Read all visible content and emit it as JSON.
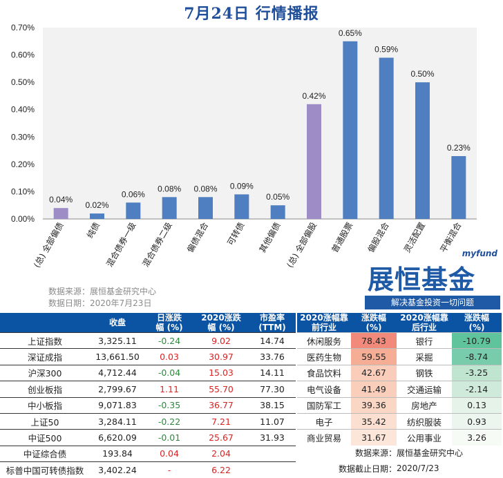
{
  "title": "7月24日  行情播报",
  "chart_data": {
    "type": "bar",
    "categories": [
      "(总) 全部偏债",
      "纯债",
      "混合债券一级",
      "混合债券二级",
      "偏债混合",
      "可转债",
      "其他偏债",
      "(总) 全部偏股",
      "普通股票",
      "偏股混合",
      "灵活配置",
      "平衡混合"
    ],
    "values": [
      0.04,
      0.02,
      0.06,
      0.08,
      0.08,
      0.09,
      0.05,
      0.42,
      0.65,
      0.59,
      0.5,
      0.23
    ],
    "value_labels": [
      "0.04%",
      "0.02%",
      "0.06%",
      "0.08%",
      "0.08%",
      "0.09%",
      "0.05%",
      "0.42%",
      "0.65%",
      "0.59%",
      "0.50%",
      "0.23%"
    ],
    "highlight_indices": [
      0,
      7
    ],
    "yticks": [
      "0.00%",
      "0.10%",
      "0.20%",
      "0.30%",
      "0.40%",
      "0.50%",
      "0.60%",
      "0.70%"
    ],
    "ylim": [
      0,
      0.7
    ],
    "grid": false,
    "colors": {
      "normal": "#4f7fc1",
      "highlight": "#9d8cc5",
      "plot_bg": "#f2f2f2"
    }
  },
  "notes": {
    "source": "数据来源：展恒基金研究中心",
    "date": "数据日期：2020年7月23日"
  },
  "logo": {
    "small": "myfund",
    "big": "展恒基金",
    "slogan": "解决基金投资一切问题"
  },
  "left_table": {
    "headers": [
      "",
      "收盘",
      "日涨跌幅 (%)",
      "2020涨跌幅 (%)",
      "市盈率 (TTM)"
    ],
    "rows": [
      {
        "name": "上证指数",
        "close": "3,325.11",
        "day": "-0.24",
        "ytd": "9.02",
        "pe": "14.74",
        "day_dir": "neg",
        "ytd_dir": "pos"
      },
      {
        "name": "深证成指",
        "close": "13,661.50",
        "day": "0.03",
        "ytd": "30.97",
        "pe": "33.76",
        "day_dir": "pos",
        "ytd_dir": "pos"
      },
      {
        "name": "沪深300",
        "close": "4,712.44",
        "day": "-0.04",
        "ytd": "15.03",
        "pe": "14.11",
        "day_dir": "neg",
        "ytd_dir": "pos"
      },
      {
        "name": "创业板指",
        "close": "2,799.67",
        "day": "1.11",
        "ytd": "55.70",
        "pe": "77.30",
        "day_dir": "pos",
        "ytd_dir": "pos"
      },
      {
        "name": "中小板指",
        "close": "9,071.83",
        "day": "-0.35",
        "ytd": "36.77",
        "pe": "38.15",
        "day_dir": "neg",
        "ytd_dir": "pos"
      },
      {
        "name": "上证50",
        "close": "3,284.11",
        "day": "-0.22",
        "ytd": "7.21",
        "pe": "11.07",
        "day_dir": "neg",
        "ytd_dir": "pos"
      },
      {
        "name": "中证500",
        "close": "6,620.09",
        "day": "-0.01",
        "ytd": "25.67",
        "pe": "31.93",
        "day_dir": "neg",
        "ytd_dir": "pos"
      },
      {
        "name": "中证综合债",
        "close": "193.84",
        "day": "0.04",
        "ytd": "2.04",
        "pe": "",
        "day_dir": "pos",
        "ytd_dir": "pos"
      },
      {
        "name": "标普中国可转债指数",
        "close": "3,402.24",
        "day": "-",
        "ytd": "6.22",
        "pe": "",
        "day_dir": "pos",
        "ytd_dir": "pos"
      }
    ]
  },
  "right_table": {
    "headers": [
      "2020涨幅靠前行业",
      "涨跌幅 (%)",
      "2020涨幅靠后行业",
      "涨跌幅 (%)"
    ],
    "rows": [
      {
        "top": "休闲服务",
        "top_val": "78.43",
        "top_color": "#f28a7c",
        "bottom": "银行",
        "bottom_val": "-10.79",
        "bottom_color": "#5fc39b"
      },
      {
        "top": "医药生物",
        "top_val": "59.55",
        "top_color": "#f6ad96",
        "bottom": "采掘",
        "bottom_val": "-8.74",
        "bottom_color": "#79ccab"
      },
      {
        "top": "食品饮料",
        "top_val": "42.67",
        "top_color": "#f9cdb9",
        "bottom": "钢铁",
        "bottom_val": "-3.25",
        "bottom_color": "#bfe4cf"
      },
      {
        "top": "电气设备",
        "top_val": "41.49",
        "top_color": "#f9cfbc",
        "bottom": "交通运输",
        "bottom_val": "-2.14",
        "bottom_color": "#cfeada"
      },
      {
        "top": "国防军工",
        "top_val": "39.36",
        "top_color": "#fad6c5",
        "bottom": "房地产",
        "bottom_val": "0.13",
        "bottom_color": "#e6f3e9"
      },
      {
        "top": "电子",
        "top_val": "35.42",
        "top_color": "#fbdfd1",
        "bottom": "纺织服装",
        "bottom_val": "0.93",
        "bottom_color": "#ecf6ee"
      },
      {
        "top": "商业贸易",
        "top_val": "31.67",
        "top_color": "#fce6da",
        "bottom": "公用事业",
        "bottom_val": "3.26",
        "bottom_color": "#f6fbf6"
      }
    ],
    "footer": [
      {
        "label": "数据来源：",
        "value": "展恒基金研究中心"
      },
      {
        "label": "数据截止日期：",
        "value": "2020/7/23"
      }
    ]
  }
}
